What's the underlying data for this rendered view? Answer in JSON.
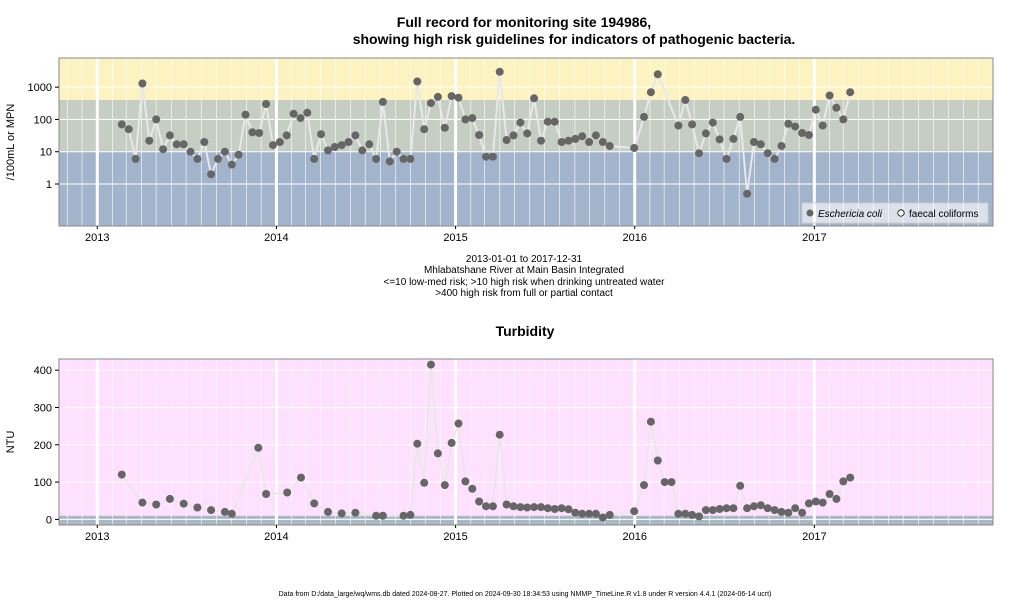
{
  "footer": "Data from D:/data_large/wq/wms.db dated 2024-08-27. Plotted on 2024-09-30 18:34:53 using NMMP_TimeLine.R v1.8 under R version 4.4.1 (2024-06-14 ucrt)",
  "chart_data": [
    {
      "type": "scatter",
      "title_lines": [
        "Full record for monitoring site 194986,",
        "showing high risk guidelines for indicators of pathogenic bacteria."
      ],
      "ylabel": "/100mL or MPN",
      "xlabel": "",
      "y_scale": "log",
      "ylim": [
        0.05,
        8000
      ],
      "y_ticks": [
        1,
        10,
        100,
        1000
      ],
      "y_tick_labels": [
        "1",
        "10",
        "100",
        "1000"
      ],
      "x_range": [
        "2012-10-15",
        "2017-12-31"
      ],
      "x_tick_labels": [
        "2013",
        "2014",
        "2015",
        "2016",
        "2017"
      ],
      "grid": true,
      "bands": [
        {
          "from": 0.05,
          "to": 10,
          "color": "#a2b4cc"
        },
        {
          "from": 10,
          "to": 400,
          "color": "#c6cec4"
        },
        {
          "from": 400,
          "to": 8000,
          "color": "#fcf3c0"
        }
      ],
      "subtitle_lines": [
        "2013-01-01 to 2017-12-31",
        "Mhlabatshane River at Main Basin Integrated",
        "<=10 low-med risk; >10 high risk when drinking untreated water",
        ">400 high risk from full or partial contact"
      ],
      "legend": {
        "position": "bottom-right",
        "entries": [
          "Eschericia coli",
          "faecal coliforms"
        ]
      },
      "series": [
        {
          "name": "Eschericia coli",
          "color": "#666666",
          "x": [
            "2013-02-20",
            "2013-03-06",
            "2013-03-20",
            "2013-04-03",
            "2013-04-17",
            "2013-05-01",
            "2013-05-15",
            "2013-05-29",
            "2013-06-12",
            "2013-06-26",
            "2013-07-10",
            "2013-07-24",
            "2013-08-07",
            "2013-08-21",
            "2013-09-04",
            "2013-09-18",
            "2013-10-02",
            "2013-10-16",
            "2013-10-30",
            "2013-11-13",
            "2013-11-27",
            "2013-12-11",
            "2013-12-25",
            "2014-01-08",
            "2014-01-22",
            "2014-02-05",
            "2014-02-19",
            "2014-03-05",
            "2014-03-19",
            "2014-04-02",
            "2014-04-16",
            "2014-04-30",
            "2014-05-14",
            "2014-05-28",
            "2014-06-11",
            "2014-06-25",
            "2014-07-09",
            "2014-07-23",
            "2014-08-06",
            "2014-08-20",
            "2014-09-03",
            "2014-09-17",
            "2014-10-01",
            "2014-10-15",
            "2014-10-29",
            "2014-11-12",
            "2014-11-26",
            "2014-12-10",
            "2014-12-24",
            "2015-01-07",
            "2015-01-21",
            "2015-02-04",
            "2015-02-18",
            "2015-03-04",
            "2015-03-18",
            "2015-04-01",
            "2015-04-15",
            "2015-04-29",
            "2015-05-13",
            "2015-05-27",
            "2015-06-10",
            "2015-06-24",
            "2015-07-08",
            "2015-07-22",
            "2015-08-05",
            "2015-08-19",
            "2015-09-02",
            "2015-09-16",
            "2015-09-30",
            "2015-10-14",
            "2015-10-28",
            "2015-11-11",
            "2015-12-31",
            "2016-01-20",
            "2016-02-03",
            "2016-02-17",
            "2016-03-30",
            "2016-04-13",
            "2016-04-27",
            "2016-05-11",
            "2016-05-25",
            "2016-06-08",
            "2016-06-22",
            "2016-07-06",
            "2016-07-20",
            "2016-08-03",
            "2016-08-17",
            "2016-08-31",
            "2016-09-14",
            "2016-09-28",
            "2016-10-12",
            "2016-10-26",
            "2016-11-09",
            "2016-11-23",
            "2016-12-07",
            "2016-12-21",
            "2017-01-04",
            "2017-01-18",
            "2017-02-01",
            "2017-02-15",
            "2017-03-01",
            "2017-03-15"
          ],
          "y": [
            70,
            50,
            6,
            1300,
            22,
            100,
            12,
            32,
            17,
            17,
            10,
            6,
            20,
            2,
            6,
            10,
            4,
            8,
            140,
            40,
            38,
            300,
            16,
            20,
            32,
            150,
            110,
            160,
            6,
            35,
            11,
            14,
            16,
            20,
            32,
            11,
            17,
            6,
            350,
            5,
            10,
            6,
            6,
            1500,
            50,
            320,
            500,
            55,
            530,
            470,
            100,
            110,
            33,
            7,
            7,
            3000,
            23,
            32,
            80,
            37,
            450,
            22,
            85,
            85,
            20,
            22,
            25,
            30,
            20,
            32,
            20,
            15,
            13,
            120,
            700,
            2500,
            65,
            400,
            70,
            9,
            37,
            80,
            24,
            6,
            25,
            120,
            0.5,
            20,
            17,
            9,
            6,
            15,
            73,
            60,
            38,
            33,
            200,
            65,
            550,
            230,
            100,
            700
          ]
        }
      ]
    },
    {
      "type": "scatter",
      "title": "Turbidity",
      "ylabel": "NTU",
      "xlabel": "",
      "ylim": [
        -15,
        430
      ],
      "y_ticks": [
        0,
        100,
        200,
        300,
        400
      ],
      "y_tick_labels": [
        "0",
        "100",
        "200",
        "300",
        "400"
      ],
      "x_range": [
        "2012-10-15",
        "2017-12-31"
      ],
      "x_tick_labels": [
        "2013",
        "2014",
        "2015",
        "2016",
        "2017"
      ],
      "grid": true,
      "bands": [
        {
          "from": -15,
          "to": 10,
          "color": "#a8b8c4"
        },
        {
          "from": 10,
          "to": 430,
          "color": "#ffe0ff"
        }
      ],
      "series": [
        {
          "name": "",
          "color": "#666666",
          "x": [
            "2013-02-20",
            "2013-04-03",
            "2013-05-01",
            "2013-05-29",
            "2013-06-26",
            "2013-07-24",
            "2013-08-21",
            "2013-09-18",
            "2013-10-02",
            "2013-11-25",
            "2013-12-11",
            "2014-01-23",
            "2014-02-20",
            "2014-03-19",
            "2014-04-16",
            "2014-05-14",
            "2014-06-11",
            "2014-07-23",
            "2014-08-06",
            "2014-09-17",
            "2014-10-01",
            "2014-10-15",
            "2014-10-29",
            "2014-11-12",
            "2014-11-26",
            "2014-12-10",
            "2014-12-24",
            "2015-01-07",
            "2015-01-21",
            "2015-02-04",
            "2015-02-18",
            "2015-03-04",
            "2015-03-18",
            "2015-04-01",
            "2015-04-15",
            "2015-04-29",
            "2015-05-13",
            "2015-05-27",
            "2015-06-10",
            "2015-06-24",
            "2015-07-08",
            "2015-07-22",
            "2015-08-05",
            "2015-08-19",
            "2015-09-02",
            "2015-09-16",
            "2015-09-30",
            "2015-10-14",
            "2015-10-28",
            "2015-11-11",
            "2015-12-31",
            "2016-01-20",
            "2016-02-03",
            "2016-02-17",
            "2016-03-02",
            "2016-03-16",
            "2016-03-30",
            "2016-04-13",
            "2016-04-27",
            "2016-05-11",
            "2016-05-25",
            "2016-06-08",
            "2016-06-22",
            "2016-07-06",
            "2016-07-20",
            "2016-08-03",
            "2016-08-17",
            "2016-08-31",
            "2016-09-14",
            "2016-09-28",
            "2016-10-12",
            "2016-10-26",
            "2016-11-09",
            "2016-11-23",
            "2016-12-07",
            "2016-12-21",
            "2017-01-04",
            "2017-01-18",
            "2017-02-01",
            "2017-02-15",
            "2017-03-01",
            "2017-03-15"
          ],
          "y": [
            120,
            45,
            40,
            55,
            42,
            32,
            25,
            20,
            15,
            192,
            68,
            72,
            112,
            43,
            20,
            16,
            18,
            10,
            10,
            10,
            12,
            203,
            98,
            415,
            177,
            92,
            205,
            257,
            102,
            82,
            48,
            35,
            35,
            227,
            40,
            35,
            33,
            32,
            33,
            33,
            30,
            28,
            30,
            27,
            18,
            15,
            15,
            15,
            5,
            12,
            22,
            92,
            262,
            158,
            100,
            100,
            15,
            15,
            12,
            8,
            25,
            25,
            28,
            30,
            30,
            90,
            30,
            35,
            38,
            30,
            25,
            20,
            18,
            30,
            18,
            43,
            48,
            45,
            68,
            55,
            102,
            112
          ]
        }
      ]
    }
  ]
}
